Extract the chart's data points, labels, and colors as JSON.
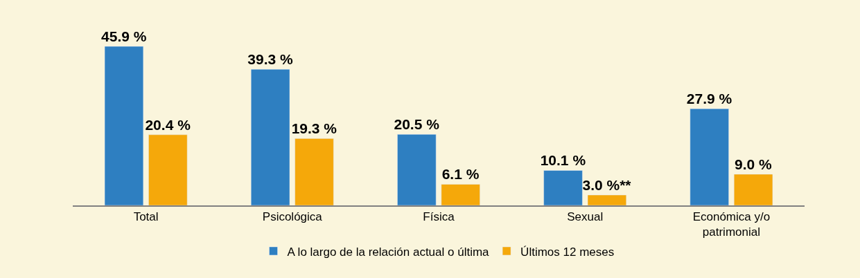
{
  "chart_data": {
    "type": "bar",
    "categories": [
      "Total",
      "Psicológica",
      "Física",
      "Sexual",
      "Económica y/o\npatrimonial"
    ],
    "series": [
      {
        "name": "A lo largo de la relación actual o última",
        "color": "#2e7fc1",
        "values": [
          45.9,
          39.3,
          20.5,
          10.1,
          27.9
        ],
        "value_labels": [
          "45.9 %",
          "39.3 %",
          "20.5 %",
          "10.1 %",
          "27.9 %"
        ]
      },
      {
        "name": "Últimos 12 meses",
        "color": "#f5a80a",
        "values": [
          20.4,
          19.3,
          6.1,
          3.0,
          9.0
        ],
        "value_labels": [
          "20.4 %",
          "19.3 %",
          "6.1 %",
          "3.0 %**",
          "9.0 %"
        ]
      }
    ],
    "legend": "bottom"
  }
}
